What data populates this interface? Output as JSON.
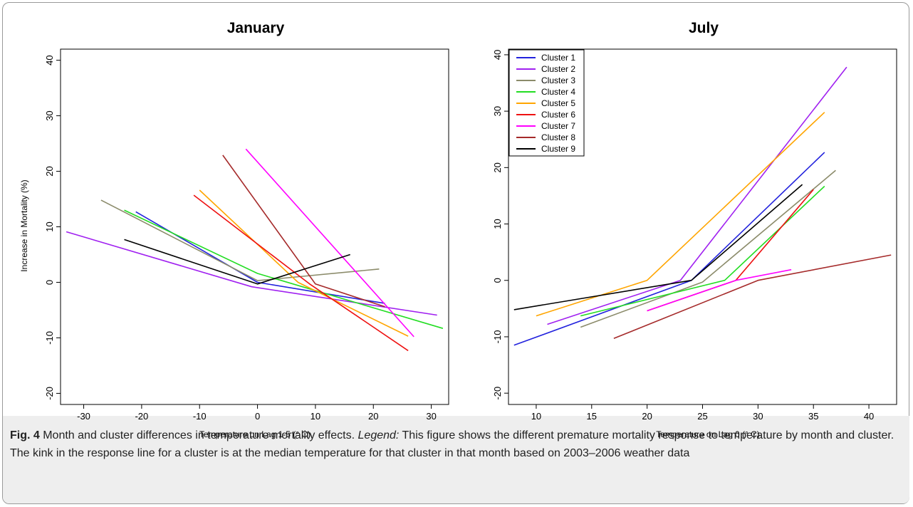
{
  "chart_data": [
    {
      "type": "line",
      "title": "January",
      "xlabel": "Temperature on Lag 1-5 (° C)",
      "ylabel": "Increase in Mortality (%)",
      "xlim": [
        -34,
        33
      ],
      "ylim": [
        -22,
        42
      ],
      "xticks": [
        -30,
        -20,
        -10,
        0,
        10,
        20,
        30
      ],
      "yticks": [
        -20,
        -10,
        0,
        10,
        20,
        30,
        40
      ],
      "grid": false,
      "legend": "none",
      "series": [
        {
          "name": "Cluster 1",
          "color": "#2222dd",
          "points": [
            [
              -21,
              12.7
            ],
            [
              0,
              0
            ],
            [
              22,
              -3.8
            ]
          ]
        },
        {
          "name": "Cluster 2",
          "color": "#a020f0",
          "points": [
            [
              -33,
              9.1
            ],
            [
              -1,
              -0.8
            ],
            [
              31,
              -5.9
            ]
          ]
        },
        {
          "name": "Cluster 3",
          "color": "#8b8b6a",
          "points": [
            [
              -27,
              14.8
            ],
            [
              0,
              0.3
            ],
            [
              21,
              2.4
            ]
          ]
        },
        {
          "name": "Cluster 4",
          "color": "#22dd22",
          "points": [
            [
              -23,
              13
            ],
            [
              0,
              1.6
            ],
            [
              32,
              -8.3
            ]
          ]
        },
        {
          "name": "Cluster 5",
          "color": "#ffa500",
          "points": [
            [
              -10,
              16.6
            ],
            [
              7,
              0
            ],
            [
              26,
              -9.7
            ]
          ]
        },
        {
          "name": "Cluster 6",
          "color": "#ee1111",
          "points": [
            [
              -11,
              15.7
            ],
            [
              9,
              -0.3
            ],
            [
              26,
              -12.3
            ]
          ]
        },
        {
          "name": "Cluster 7",
          "color": "#ff00ff",
          "points": [
            [
              -2,
              24
            ],
            [
              27,
              -9.8
            ]
          ]
        },
        {
          "name": "Cluster 8",
          "color": "#a52a2a",
          "points": [
            [
              -6,
              22.9
            ],
            [
              10,
              -0.3
            ],
            [
              22,
              -4.4
            ]
          ]
        },
        {
          "name": "Cluster 9",
          "color": "#000000",
          "points": [
            [
              -23,
              7.7
            ],
            [
              0,
              -0.3
            ],
            [
              16,
              5
            ]
          ]
        }
      ]
    },
    {
      "type": "line",
      "title": "July",
      "xlabel": "Temperature on Lag 0 (° C)",
      "ylabel": "",
      "xlim": [
        7.5,
        42.5
      ],
      "ylim": [
        -22,
        41
      ],
      "xticks": [
        10,
        15,
        20,
        25,
        30,
        35,
        40
      ],
      "yticks": [
        -20,
        -10,
        0,
        10,
        20,
        30,
        40
      ],
      "grid": false,
      "legend": "top-left",
      "series": [
        {
          "name": "Cluster 1",
          "color": "#2222dd",
          "points": [
            [
              8,
              -11.5
            ],
            [
              24,
              0
            ],
            [
              36,
              22.7
            ]
          ]
        },
        {
          "name": "Cluster 2",
          "color": "#a020f0",
          "points": [
            [
              11,
              -7.8
            ],
            [
              23,
              0
            ],
            [
              38,
              37.8
            ]
          ]
        },
        {
          "name": "Cluster 3",
          "color": "#8b8b6a",
          "points": [
            [
              14,
              -8.3
            ],
            [
              25,
              -0.3
            ],
            [
              37,
              19.5
            ]
          ]
        },
        {
          "name": "Cluster 4",
          "color": "#22dd22",
          "points": [
            [
              14,
              -6.3
            ],
            [
              27,
              0
            ],
            [
              36,
              16.7
            ]
          ]
        },
        {
          "name": "Cluster 5",
          "color": "#ffa500",
          "points": [
            [
              10,
              -6.3
            ],
            [
              20,
              0
            ],
            [
              36,
              29.8
            ]
          ]
        },
        {
          "name": "Cluster 6",
          "color": "#ee1111",
          "points": [
            [
              20,
              -5.4
            ],
            [
              28,
              0
            ],
            [
              35,
              16.1
            ]
          ]
        },
        {
          "name": "Cluster 7",
          "color": "#ff00ff",
          "points": [
            [
              20,
              -5.4
            ],
            [
              28,
              0
            ],
            [
              33,
              1.9
            ]
          ]
        },
        {
          "name": "Cluster 8",
          "color": "#a52a2a",
          "points": [
            [
              17,
              -10.3
            ],
            [
              30,
              0
            ],
            [
              42,
              4.5
            ]
          ]
        },
        {
          "name": "Cluster 9",
          "color": "#000000",
          "points": [
            [
              8,
              -5.2
            ],
            [
              24,
              0
            ],
            [
              34,
              17
            ]
          ]
        }
      ]
    }
  ],
  "caption": {
    "label": "Fig. 4",
    "text1": " Month and cluster differences in temperature mortality effects. ",
    "legend_word": "Legend:",
    "text2": " This figure shows the different premature mortality response to temperature by month and cluster. The kink in the response line for a cluster is at the median temperature for that cluster in that month based on 2003–2006 weather data"
  }
}
